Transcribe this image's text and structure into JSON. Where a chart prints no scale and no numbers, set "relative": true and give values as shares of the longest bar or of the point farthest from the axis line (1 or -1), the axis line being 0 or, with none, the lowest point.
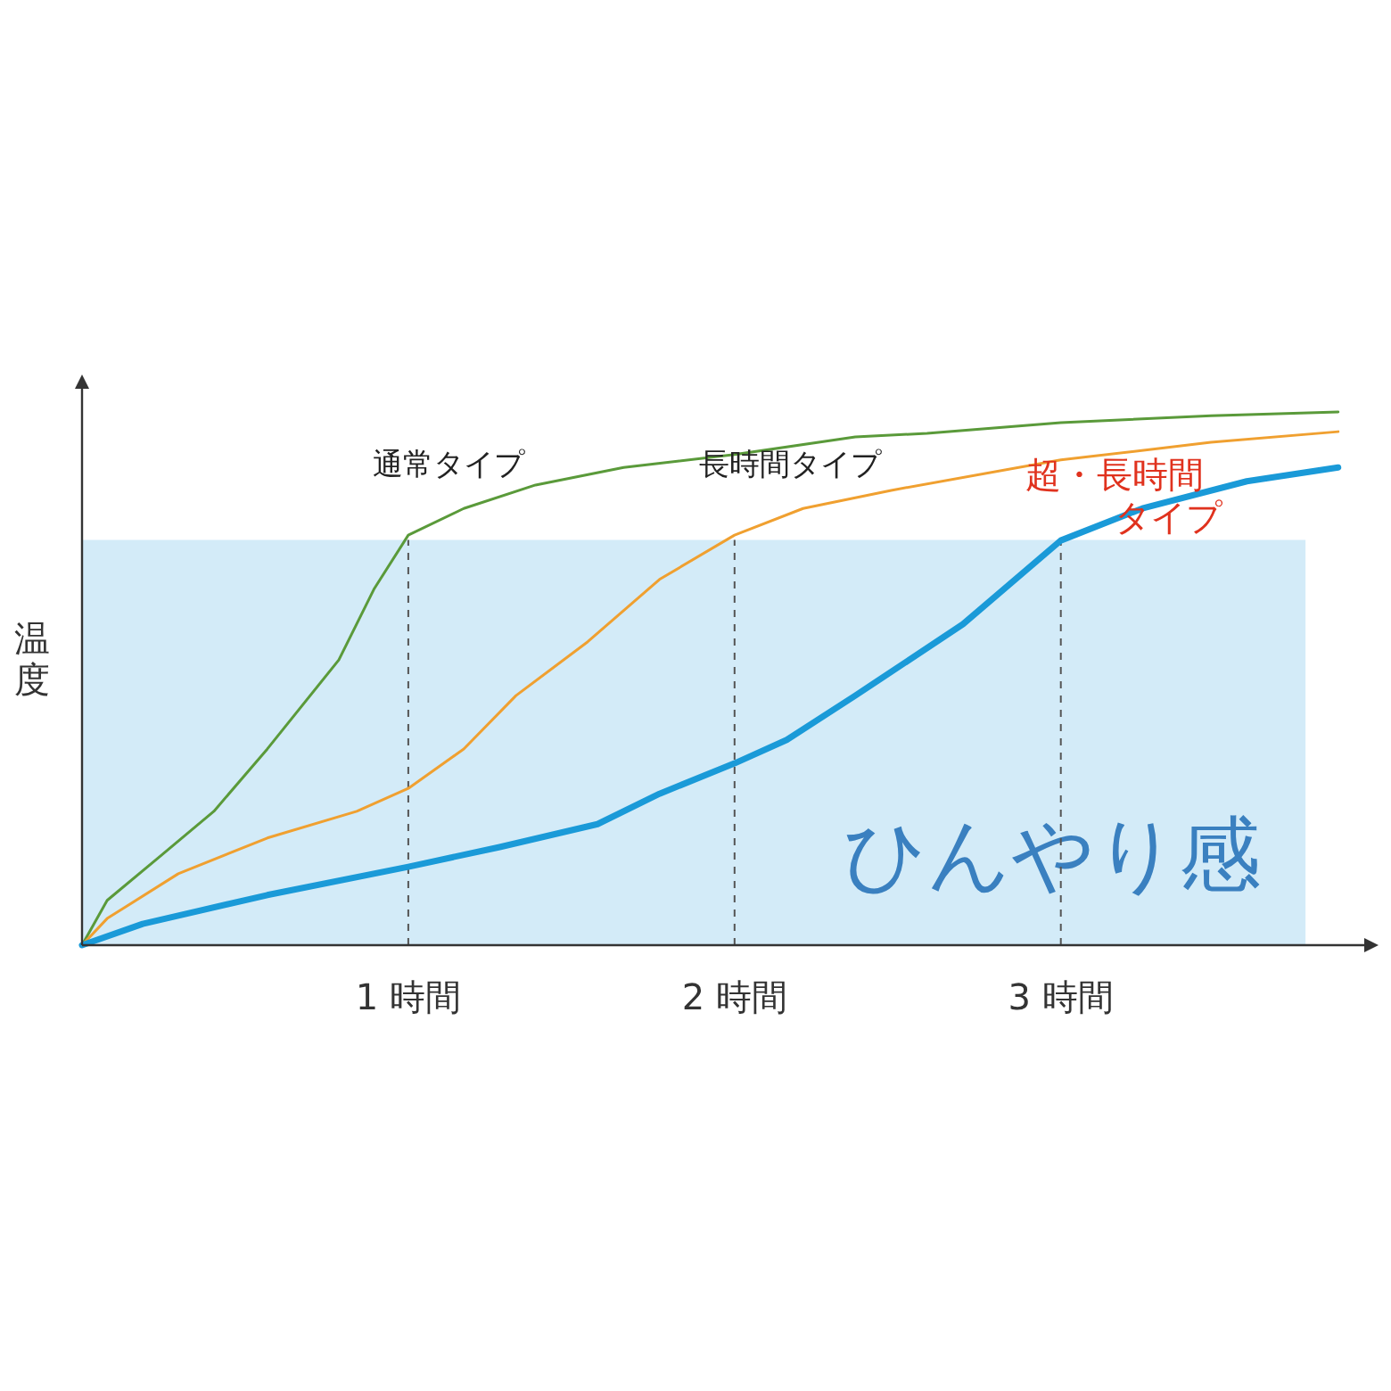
{
  "chart_data": {
    "type": "line",
    "relative": true,
    "ylabel": "温度",
    "xlim": [
      0,
      3.93
    ],
    "xticks": [
      {
        "value": 1,
        "label": "1 時間"
      },
      {
        "value": 2,
        "label": "2 時間"
      },
      {
        "value": 3,
        "label": "3 時間"
      }
    ],
    "marker": "none",
    "line_style": "solid",
    "ref_lines": [
      {
        "axis": "x",
        "value": 1,
        "label": null,
        "line_style": "dashed",
        "color": "#555555"
      },
      {
        "axis": "x",
        "value": 2,
        "label": null,
        "line_style": "dashed",
        "color": "#555555"
      },
      {
        "axis": "x",
        "value": 3,
        "label": null,
        "line_style": "dashed",
        "color": "#555555"
      }
    ],
    "bands": [
      {
        "axis": "y",
        "from": 0,
        "to": 0.76,
        "label": "ひんやり感",
        "color": "#d3ebf8"
      }
    ],
    "series": [
      {
        "name": "通常タイプ",
        "color": "#5a9a3a",
        "x": [
          0,
          0.077,
          0.24,
          0.404,
          0.568,
          0.787,
          0.896,
          1.0,
          1.17,
          1.39,
          1.66,
          2.0,
          2.37,
          2.59,
          3.0,
          3.46,
          3.85
        ],
        "values": [
          0,
          0.084,
          0.167,
          0.251,
          0.368,
          0.535,
          0.669,
          0.769,
          0.819,
          0.863,
          0.896,
          0.92,
          0.953,
          0.96,
          0.98,
          0.993,
          1.0
        ]
      },
      {
        "name": "長時間タイプ",
        "color": "#f0a030",
        "x": [
          0,
          0.077,
          0.295,
          0.568,
          0.842,
          1.0,
          1.17,
          1.33,
          1.55,
          1.77,
          2.0,
          2.21,
          2.48,
          3.0,
          3.46,
          3.85
        ],
        "values": [
          0,
          0.05,
          0.134,
          0.201,
          0.251,
          0.294,
          0.368,
          0.468,
          0.569,
          0.686,
          0.769,
          0.819,
          0.853,
          0.91,
          0.943,
          0.963
        ]
      },
      {
        "name": "超・長時間タイプ",
        "color": "#1a9ad8",
        "x": [
          0,
          0.186,
          0.568,
          1.0,
          1.28,
          1.58,
          1.77,
          2.0,
          2.16,
          2.37,
          2.7,
          3.0,
          3.25,
          3.57,
          3.85
        ],
        "values": [
          0,
          0.04,
          0.094,
          0.147,
          0.184,
          0.227,
          0.284,
          0.341,
          0.385,
          0.468,
          0.602,
          0.759,
          0.819,
          0.87,
          0.896
        ]
      }
    ]
  }
}
